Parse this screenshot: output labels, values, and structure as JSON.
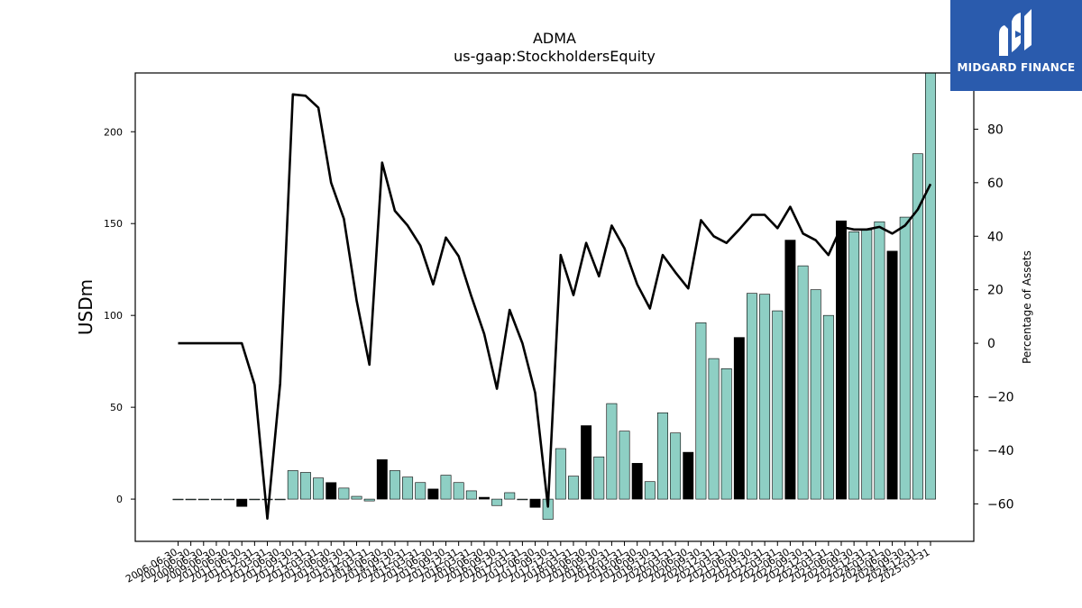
{
  "brand": {
    "name": "MIDGARD FINANCE",
    "background": "#2a5bad",
    "icon": "midgard-logo-icon"
  },
  "chart_data": {
    "type": "bar",
    "title": "ADMA",
    "subtitle": "us-gaap:StockholdersEquity",
    "ylabel": "USDm",
    "y2label": "Percentage of Assets",
    "ylim": [
      -23,
      232
    ],
    "y2lim": [
      -74,
      101
    ],
    "yticks": [
      0,
      50,
      100,
      150,
      200
    ],
    "y2ticks": [
      -60,
      -40,
      -20,
      0,
      20,
      40,
      60,
      80
    ],
    "bar_color": "#8ecfc4",
    "highlight_color": "#000000",
    "line_color": "#000000",
    "categories": [
      "2006-06-30",
      "2007-06-30",
      "2008-06-30",
      "2009-06-30",
      "2010-06-30",
      "2011-06-30",
      "2011-12-31",
      "2012-03-31",
      "2012-06-30",
      "2012-09-30",
      "2012-12-31",
      "2013-03-31",
      "2013-06-30",
      "2013-09-30",
      "2013-12-31",
      "2014-03-31",
      "2014-06-30",
      "2014-09-30",
      "2014-12-31",
      "2015-03-31",
      "2015-06-30",
      "2015-09-30",
      "2015-12-31",
      "2016-03-31",
      "2016-06-30",
      "2016-09-30",
      "2016-12-31",
      "2017-03-31",
      "2017-06-30",
      "2017-09-30",
      "2017-12-31",
      "2018-03-31",
      "2018-06-30",
      "2018-09-30",
      "2018-12-31",
      "2019-03-31",
      "2019-06-30",
      "2019-09-30",
      "2019-12-31",
      "2020-03-31",
      "2020-06-30",
      "2020-09-30",
      "2020-12-31",
      "2021-03-31",
      "2021-06-30",
      "2021-09-30",
      "2021-12-31",
      "2022-03-31",
      "2022-06-30",
      "2022-09-30",
      "2022-12-31",
      "2023-03-31",
      "2023-06-30",
      "2023-09-30",
      "2023-12-31",
      "2024-03-31",
      "2024-06-30",
      "2024-09-30",
      "2024-12-31",
      "2025-03-31"
    ],
    "xtick_labels": [
      "2006-06-30",
      "2007-06-30",
      "2008-06-30",
      "2009-06-30",
      "2010-06-30",
      "2011-06-30",
      "2011-12-31",
      "2012-03-31",
      "2012-06-30",
      "2012-09-30",
      "2012-12-31",
      "2013-03-31",
      "2013-06-30",
      "2013-09-30",
      "2013-12-31",
      "2014-03-31",
      "2014-06-30",
      "2014-09-30",
      "2014-12-31",
      "2015-03-31",
      "2015-06-30",
      "2015-09-30",
      "2015-12-31",
      "2016-03-31",
      "2016-06-30",
      "2016-09-30",
      "2016-12-31",
      "2017-03-31",
      "2017-06-30",
      "2017-09-30",
      "2017-12-31",
      "2018-03-31",
      "2018-06-30",
      "2018-09-30",
      "2018-12-31",
      "2019-03-31",
      "2019-06-30",
      "2019-09-30",
      "2019-12-31",
      "2020-03-31",
      "2020-06-30",
      "2020-09-30",
      "2020-12-31",
      "2021-03-31",
      "2021-06-30",
      "2021-09-30",
      "2021-12-31",
      "2022-03-31",
      "2022-06-30",
      "2022-09-30",
      "2022-12-31",
      "2023-03-31",
      "2023-06-30",
      "2023-09-30",
      "2023-12-31",
      "2024-03-31",
      "2024-06-30",
      "2024-09-30",
      "2024-12-31",
      "2025-03-31"
    ],
    "values": [
      0,
      0,
      0,
      0,
      0,
      -4,
      0,
      0,
      0,
      15.5,
      14.5,
      11.5,
      9,
      6,
      1.5,
      -1,
      21.5,
      15.5,
      12,
      9,
      5.5,
      13,
      9,
      4.5,
      1,
      -3.5,
      3.5,
      0,
      -4.5,
      -11,
      27.5,
      12.5,
      40,
      23,
      52,
      37,
      19.5,
      9.5,
      47,
      36,
      25.5,
      96,
      76.5,
      71,
      88,
      112,
      111.5,
      102.5,
      141,
      127,
      114,
      100,
      151.5,
      145.5,
      146.5,
      151,
      135,
      153.5,
      188,
      232
    ],
    "highlight": [
      false,
      false,
      false,
      false,
      false,
      true,
      false,
      false,
      false,
      false,
      false,
      false,
      true,
      false,
      false,
      false,
      true,
      false,
      false,
      false,
      true,
      false,
      false,
      false,
      true,
      false,
      false,
      false,
      true,
      false,
      false,
      false,
      true,
      false,
      false,
      false,
      true,
      false,
      false,
      false,
      true,
      false,
      false,
      false,
      true,
      false,
      false,
      false,
      true,
      false,
      false,
      false,
      true,
      false,
      false,
      false,
      true,
      false,
      false,
      false
    ],
    "line_values": [
      0,
      0,
      0,
      0,
      0,
      0,
      -15.5,
      -65.5,
      -15,
      93,
      92.5,
      88,
      60,
      46.5,
      16,
      -8,
      67.5,
      49.5,
      44,
      36.5,
      22,
      39.5,
      32.5,
      17.5,
      3.5,
      -17,
      12.5,
      0,
      -18.5,
      -61,
      33,
      18,
      37.5,
      25,
      44,
      35.5,
      22,
      13,
      33,
      26.5,
      20.5,
      46,
      40,
      37.5,
      42.5,
      48,
      48,
      43,
      51,
      41,
      38.5,
      33,
      43.5,
      42.5,
      42.5,
      43.5,
      41,
      44,
      50,
      59.5
    ],
    "grid": false,
    "legend": "none"
  }
}
